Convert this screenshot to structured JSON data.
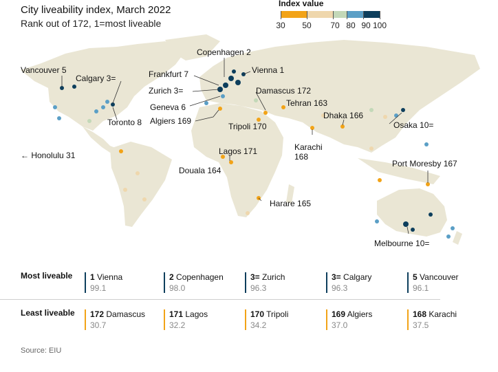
{
  "header": {
    "title": "City liveability index, March 2022",
    "subtitle": "Rank out of 172, 1=most liveable"
  },
  "legend": {
    "title": "Index value",
    "ticks": [
      "30",
      "50",
      "70",
      "80",
      "90",
      "100"
    ],
    "colors": [
      "#f2a317",
      "#efd7ad",
      "#c3d8b8",
      "#5b9fc6",
      "#0d3e5c"
    ]
  },
  "map_labels": {
    "copenhagen": "Copenhagen 2",
    "vienna": "Vienna 1",
    "vancouver": "Vancouver 5",
    "calgary": "Calgary 3=",
    "frankfurt": "Frankfurt 7",
    "zurich": "Zurich 3=",
    "damascus": "Damascus 172",
    "geneva": "Geneva 6",
    "tehran": "Tehran 163",
    "algiers": "Algiers 169",
    "tripoli": "Tripoli 170",
    "dhaka": "Dhaka 166",
    "toronto": "Toronto 8",
    "osaka": "Osaka 10=",
    "karachi_name": "Karachi",
    "karachi_rank": "168",
    "honolulu": "← Honolulu 31",
    "lagos": "Lagos 171",
    "port_moresby": "Port Moresby 167",
    "douala": "Douala 164",
    "harare": "Harare 165",
    "melbourne": "Melbourne 10="
  },
  "most_liveable": {
    "label": "Most liveable",
    "items": [
      {
        "rank": "1",
        "city": "Vienna",
        "score": "99.1"
      },
      {
        "rank": "2",
        "city": "Copenhagen",
        "score": "98.0"
      },
      {
        "rank": "3=",
        "city": "Zurich",
        "score": "96.3"
      },
      {
        "rank": "3=",
        "city": "Calgary",
        "score": "96.3"
      },
      {
        "rank": "5",
        "city": "Vancouver",
        "score": "96.1"
      }
    ]
  },
  "least_liveable": {
    "label": "Least liveable",
    "items": [
      {
        "rank": "172",
        "city": "Damascus",
        "score": "30.7"
      },
      {
        "rank": "171",
        "city": "Lagos",
        "score": "32.2"
      },
      {
        "rank": "170",
        "city": "Tripoli",
        "score": "34.2"
      },
      {
        "rank": "169",
        "city": "Algiers",
        "score": "37.0"
      },
      {
        "rank": "168",
        "city": "Karachi",
        "score": "37.5"
      }
    ]
  },
  "source": "Source: EIU"
}
